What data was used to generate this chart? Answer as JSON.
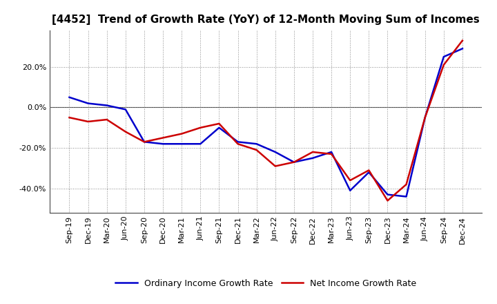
{
  "title": "[4452]  Trend of Growth Rate (YoY) of 12-Month Moving Sum of Incomes",
  "x_labels": [
    "Sep-19",
    "Dec-19",
    "Mar-20",
    "Jun-20",
    "Sep-20",
    "Dec-20",
    "Mar-21",
    "Jun-21",
    "Sep-21",
    "Dec-21",
    "Mar-22",
    "Jun-22",
    "Sep-22",
    "Dec-22",
    "Mar-23",
    "Jun-23",
    "Sep-23",
    "Dec-23",
    "Mar-24",
    "Jun-24",
    "Sep-24",
    "Dec-24"
  ],
  "ordinary_income": [
    0.05,
    0.02,
    0.01,
    -0.01,
    -0.17,
    -0.18,
    -0.18,
    -0.18,
    -0.1,
    -0.17,
    -0.18,
    -0.22,
    -0.27,
    -0.25,
    -0.22,
    -0.41,
    -0.32,
    -0.43,
    -0.44,
    -0.05,
    0.25,
    0.29
  ],
  "net_income": [
    -0.05,
    -0.07,
    -0.06,
    -0.12,
    -0.17,
    -0.15,
    -0.13,
    -0.1,
    -0.08,
    -0.18,
    -0.21,
    -0.29,
    -0.27,
    -0.22,
    -0.23,
    -0.36,
    -0.31,
    -0.46,
    -0.38,
    -0.05,
    0.21,
    0.33
  ],
  "ordinary_color": "#0000cc",
  "net_color": "#cc0000",
  "background_color": "#ffffff",
  "grid_color": "#888888",
  "ylim": [
    -0.52,
    0.38
  ],
  "yticks": [
    -0.4,
    -0.2,
    0.0,
    0.2
  ],
  "legend_ordinary": "Ordinary Income Growth Rate",
  "legend_net": "Net Income Growth Rate",
  "title_fontsize": 11,
  "tick_fontsize": 8,
  "legend_fontsize": 9
}
